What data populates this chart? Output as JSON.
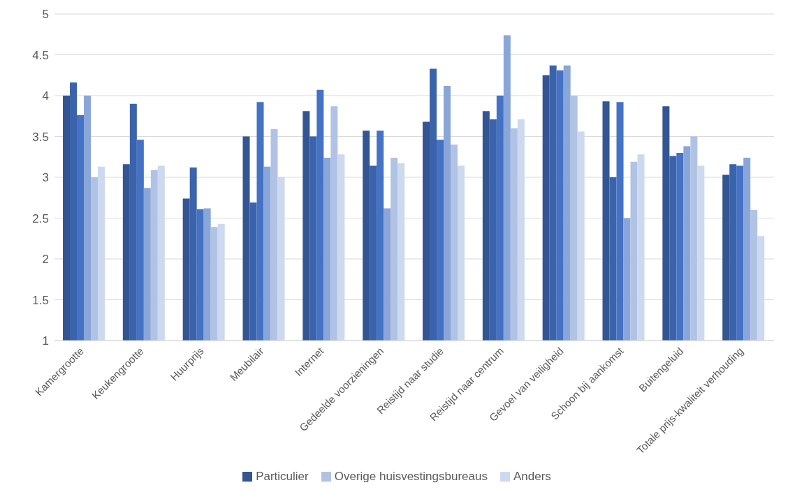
{
  "chart_data": {
    "type": "bar",
    "categories": [
      "Kamergrootte",
      "Keukengrootte",
      "Huurprijs",
      "Meubilair",
      "Internet",
      "Gedeelde voorzieningen",
      "Reistijd naar studie",
      "Reistijd naar centrum",
      "Gevoel van veiligheid",
      "Schoon bij aankomst",
      "Buitengeluid",
      "Totale prijs-kwaliteit verhouding"
    ],
    "series": [
      {
        "name": "Particulier",
        "color": "#335593",
        "values": [
          4.0,
          3.16,
          2.74,
          3.5,
          3.81,
          3.57,
          3.68,
          3.81,
          4.25,
          3.93,
          3.87,
          3.03
        ]
      },
      {
        "color": "#3a63ab",
        "values": [
          4.16,
          3.9,
          3.12,
          2.69,
          3.5,
          3.14,
          4.33,
          3.71,
          4.37,
          3.0,
          3.26,
          3.16
        ]
      },
      {
        "color": "#4472c4",
        "values": [
          3.76,
          3.46,
          2.61,
          3.92,
          4.07,
          3.57,
          3.46,
          4.0,
          4.31,
          3.92,
          3.3,
          3.14
        ]
      },
      {
        "color": "#8aa6d9",
        "values": [
          4.0,
          2.87,
          2.62,
          3.13,
          3.24,
          2.62,
          4.12,
          4.74,
          4.37,
          2.5,
          3.38,
          3.24
        ]
      },
      {
        "name": "Overige huisvestingsbureaus",
        "color": "#b1c3e5",
        "values": [
          3.0,
          3.09,
          2.39,
          3.59,
          3.87,
          3.24,
          3.4,
          3.6,
          4.0,
          3.19,
          3.5,
          2.6
        ]
      },
      {
        "name": "Anders",
        "color": "#cdd9ef",
        "values": [
          3.13,
          3.14,
          2.43,
          3.0,
          3.28,
          3.17,
          3.14,
          3.71,
          3.56,
          3.28,
          3.14,
          2.28
        ]
      }
    ],
    "ylim": [
      1,
      5
    ],
    "yticks": [
      1,
      1.5,
      2,
      2.5,
      3,
      3.5,
      4,
      4.5,
      5
    ],
    "grid": "y",
    "legend": "bottom"
  }
}
